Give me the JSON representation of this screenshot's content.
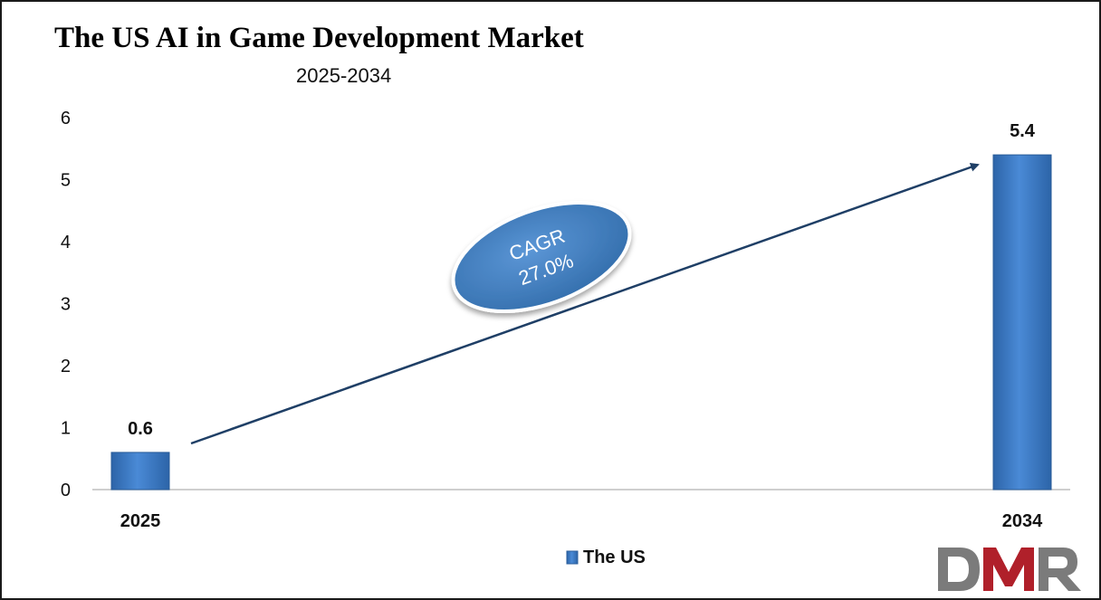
{
  "chart_data": {
    "type": "bar",
    "title": "The US AI in Game Development Market",
    "subtitle": "2025-2034",
    "categories": [
      "2025",
      "2034"
    ],
    "series": [
      {
        "name": "The US",
        "values": [
          0.6,
          5.4
        ],
        "color": "#3a78c2"
      }
    ],
    "data_labels": [
      "0.6",
      "5.4"
    ],
    "y_ticks": [
      "0",
      "1",
      "2",
      "3",
      "4",
      "5",
      "6"
    ],
    "ylim": [
      0,
      6
    ],
    "grid": false,
    "legend_position": "bottom",
    "annotation": {
      "line1": "CAGR",
      "line2": "27.0%"
    }
  },
  "logo": {
    "text": "DMR",
    "colors": [
      "#7b7b7b",
      "#b0202a"
    ]
  }
}
